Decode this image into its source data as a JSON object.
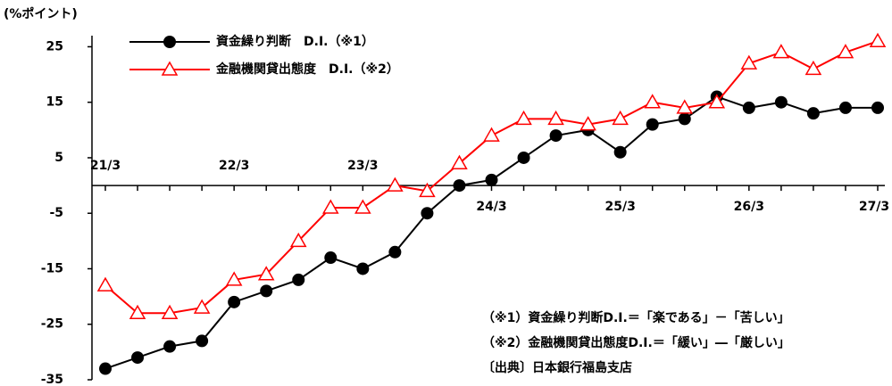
{
  "chart_data": {
    "type": "line",
    "y_label": "(%ポイント)",
    "categories": [
      "21/3",
      null,
      null,
      null,
      "22/3",
      null,
      null,
      null,
      "23/3",
      null,
      null,
      null,
      "24/3",
      null,
      null,
      null,
      "25/3",
      null,
      null,
      null,
      "26/3",
      null,
      null,
      null,
      "27/3"
    ],
    "series": [
      {
        "name": "資金繰り判断　D.I.（※1）",
        "color": "#000000",
        "marker": "circle",
        "values": [
          -33,
          -31,
          -29,
          -28,
          -21,
          -19,
          -17,
          -13,
          -15,
          -12,
          -5,
          0,
          1,
          5,
          9,
          10,
          6,
          11,
          12,
          16,
          14,
          15,
          13,
          14,
          14
        ]
      },
      {
        "name": "金融機関貸出態度　D.I.（※2）",
        "color": "#ff0000",
        "marker": "triangle",
        "values": [
          -18,
          -23,
          -23,
          -22,
          -17,
          -16,
          -10,
          -4,
          -4,
          0,
          -1,
          4,
          9,
          12,
          12,
          11,
          12,
          15,
          14,
          15,
          22,
          24,
          21,
          24,
          26
        ]
      }
    ],
    "ylim": [
      -35,
      27
    ],
    "yticks": [
      25,
      15,
      5,
      -5,
      -15,
      -25,
      -35
    ],
    "grid": false,
    "notes": [
      "（※1）資金繰り判断D.I.＝「楽である」－「苦しい」",
      "（※2）金融機関貸出態度D.I.＝「緩い」―「厳しい」",
      "〔出典〕日本銀行福島支店"
    ]
  }
}
